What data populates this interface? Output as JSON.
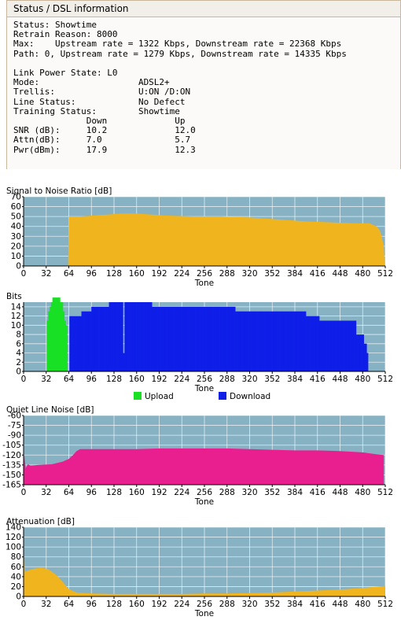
{
  "panel": {
    "title": "Status / DSL information",
    "lines": [
      "Status: Showtime",
      "Retrain Reason: 8000",
      "Max:    Upstream rate = 1322 Kbps, Downstream rate = 22368 Kbps",
      "Path: 0, Upstream rate = 1279 Kbps, Downstream rate = 14335 Kbps",
      "",
      "Link Power State: L0",
      "Mode:                   ADSL2+",
      "Trellis:                U:ON /D:ON",
      "Line Status:            No Defect",
      "Training Status:        Showtime",
      "              Down             Up",
      "SNR (dB):     10.2             12.0",
      "Attn(dB):     7.0              5.7",
      "Pwr(dBm):     17.9             12.3"
    ]
  },
  "colors": {
    "plot_bg": "#87b2c4",
    "grid": "#ffffff",
    "axis": "#000000",
    "snr_fill": "#f0b41e",
    "upload": "#19e024",
    "download": "#0f1fe8",
    "noise_fill": "#ea1f8f",
    "atten_fill": "#f0b41e"
  },
  "chart_data": [
    {
      "type": "area",
      "title": "Signal to Noise Ratio [dB]",
      "xlabel": "Tone",
      "ylabel": "",
      "xlim": [
        0,
        512
      ],
      "ylim": [
        0,
        70
      ],
      "x_ticks": [
        0,
        32,
        64,
        96,
        128,
        160,
        192,
        224,
        256,
        288,
        320,
        352,
        384,
        416,
        448,
        480,
        512
      ],
      "y_ticks": [
        0,
        10,
        20,
        30,
        40,
        50,
        60,
        70
      ],
      "grid": true,
      "series": [
        {
          "color_key": "snr_fill",
          "x": [
            0,
            63,
            64,
            80,
            100,
            120,
            140,
            160,
            180,
            200,
            240,
            280,
            320,
            360,
            400,
            440,
            470,
            490,
            500,
            505,
            510,
            511,
            512
          ],
          "y": [
            0,
            0,
            50,
            50,
            51,
            52,
            53,
            53,
            52,
            51,
            50,
            50,
            49,
            47,
            45,
            44,
            43,
            43,
            40,
            35,
            20,
            0,
            0
          ]
        }
      ]
    },
    {
      "type": "bar",
      "title": "Bits",
      "xlabel": "Tone",
      "ylabel": "",
      "xlim": [
        0,
        512
      ],
      "ylim": [
        0,
        15
      ],
      "x_ticks": [
        0,
        32,
        64,
        96,
        128,
        160,
        192,
        224,
        256,
        288,
        320,
        352,
        384,
        416,
        448,
        480,
        512
      ],
      "y_ticks": [
        0,
        2,
        4,
        6,
        8,
        10,
        12,
        14
      ],
      "grid": true,
      "legend": "bottom",
      "series": [
        {
          "name": "Upload",
          "color_key": "upload",
          "x": [
            32,
            33,
            35,
            37,
            39,
            41,
            44,
            48,
            52,
            56,
            58,
            60,
            62
          ],
          "y": [
            0,
            11,
            13,
            14,
            15,
            16,
            16,
            16,
            15,
            13,
            11,
            10,
            0
          ]
        },
        {
          "name": "Download",
          "color_key": "download",
          "x": [
            64,
            65,
            80,
            82,
            94,
            96,
            120,
            121,
            140,
            141,
            142,
            143,
            150,
            170,
            181,
            182,
            250,
            260,
            290,
            300,
            330,
            340,
            370,
            385,
            398,
            400,
            416,
            419,
            470,
            471,
            480,
            482,
            484,
            486,
            488
          ],
          "y": [
            0,
            12,
            12,
            13,
            13,
            14,
            14,
            15,
            15,
            4,
            4,
            15,
            15,
            15,
            15,
            14,
            14,
            14,
            14,
            13,
            13,
            13,
            13,
            13,
            13,
            12,
            12,
            11,
            11,
            8,
            8,
            6,
            6,
            4,
            0
          ]
        }
      ]
    },
    {
      "type": "area",
      "title": "Quiet Line Noise [dB]",
      "xlabel": "Tone",
      "ylabel": "",
      "xlim": [
        0,
        512
      ],
      "ylim": [
        -165,
        -60
      ],
      "x_ticks": [
        0,
        32,
        64,
        96,
        128,
        160,
        192,
        224,
        256,
        288,
        320,
        352,
        384,
        416,
        448,
        480,
        512
      ],
      "y_ticks": [
        -165,
        -150,
        -135,
        -120,
        -105,
        -90,
        -75,
        -60
      ],
      "grid": true,
      "series": [
        {
          "color_key": "noise_fill",
          "x": [
            0,
            1,
            3,
            6,
            10,
            20,
            40,
            55,
            64,
            70,
            75,
            80,
            96,
            128,
            160,
            192,
            224,
            256,
            288,
            320,
            352,
            384,
            416,
            448,
            480,
            500,
            510
          ],
          "y": [
            -165,
            -120,
            -140,
            -134,
            -136,
            -135,
            -134,
            -130,
            -126,
            -120,
            -114,
            -111,
            -111,
            -111,
            -111,
            -110,
            -110,
            -110,
            -110,
            -111,
            -112,
            -113,
            -113,
            -114,
            -116,
            -119,
            -120
          ]
        }
      ]
    },
    {
      "type": "area",
      "title": "Attenuation [dB]",
      "xlabel": "Tone",
      "ylabel": "",
      "xlim": [
        0,
        512
      ],
      "ylim": [
        0,
        140
      ],
      "x_ticks": [
        0,
        32,
        64,
        96,
        128,
        160,
        192,
        224,
        256,
        288,
        320,
        352,
        384,
        416,
        448,
        480,
        512
      ],
      "y_ticks": [
        0,
        20,
        40,
        60,
        80,
        100,
        120,
        140
      ],
      "grid": true,
      "series": [
        {
          "color_key": "atten_fill",
          "x": [
            0,
            1,
            2,
            5,
            15,
            25,
            35,
            45,
            55,
            64,
            75,
            96,
            128,
            160,
            192,
            224,
            256,
            288,
            320,
            352,
            384,
            416,
            448,
            480,
            510,
            512
          ],
          "y": [
            0,
            80,
            50,
            52,
            56,
            58,
            55,
            45,
            30,
            15,
            8,
            6,
            5,
            5,
            5,
            5,
            6,
            6,
            7,
            8,
            10,
            12,
            14,
            17,
            21,
            21
          ]
        }
      ]
    }
  ]
}
